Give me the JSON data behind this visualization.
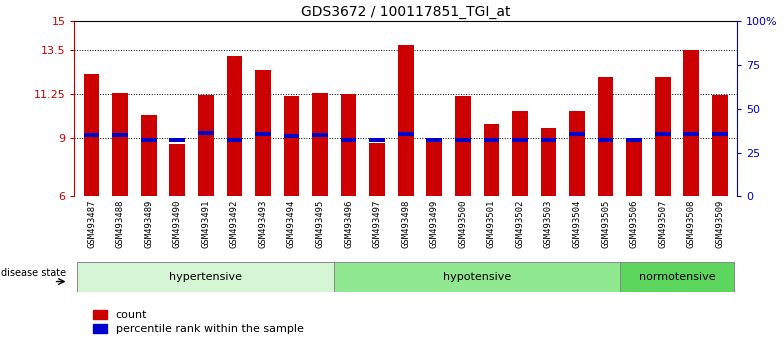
{
  "title": "GDS3672 / 100117851_TGI_at",
  "samples": [
    "GSM493487",
    "GSM493488",
    "GSM493489",
    "GSM493490",
    "GSM493491",
    "GSM493492",
    "GSM493493",
    "GSM493494",
    "GSM493495",
    "GSM493496",
    "GSM493497",
    "GSM493498",
    "GSM493499",
    "GSM493500",
    "GSM493501",
    "GSM493502",
    "GSM493503",
    "GSM493504",
    "GSM493505",
    "GSM493506",
    "GSM493507",
    "GSM493508",
    "GSM493509"
  ],
  "count_values": [
    12.3,
    11.3,
    10.2,
    8.7,
    11.2,
    13.2,
    12.5,
    11.15,
    11.3,
    11.25,
    8.75,
    13.8,
    9.0,
    11.15,
    9.7,
    10.4,
    9.5,
    10.4,
    12.15,
    9.0,
    12.15,
    13.5,
    11.2
  ],
  "percentile_values": [
    9.05,
    9.05,
    8.78,
    8.78,
    9.15,
    8.78,
    9.1,
    9.0,
    9.05,
    8.78,
    8.78,
    9.1,
    8.78,
    8.78,
    8.78,
    8.78,
    8.78,
    9.1,
    8.78,
    8.78,
    9.1,
    9.1,
    9.1
  ],
  "groups": [
    {
      "label": "hypertensive",
      "start": 0,
      "end": 9,
      "color": "#d5f5d5"
    },
    {
      "label": "hypotensive",
      "start": 9,
      "end": 19,
      "color": "#90e890"
    },
    {
      "label": "normotensive",
      "start": 19,
      "end": 23,
      "color": "#5cd65c"
    }
  ],
  "ylim_left": [
    6,
    15
  ],
  "yticks_left": [
    6,
    9,
    11.25,
    13.5,
    15
  ],
  "ytick_labels_left": [
    "6",
    "9",
    "11.25",
    "13.5",
    "15"
  ],
  "bar_color": "#cc0000",
  "percentile_color": "#0000cc",
  "grid_lines": [
    9,
    11.25,
    13.5
  ],
  "bar_width": 0.55,
  "legend_count": "count",
  "legend_percentile": "percentile rank within the sample",
  "disease_state_label": "disease state"
}
